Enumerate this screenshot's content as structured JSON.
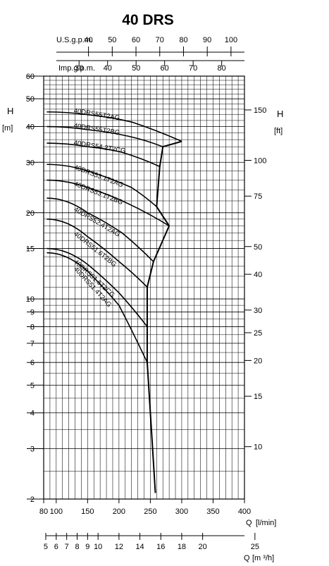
{
  "chart_data": {
    "type": "line",
    "title": "40 DRS",
    "x_axis_bottom": {
      "label_prefix": "Q",
      "unit": "[l/min]",
      "range": [
        80,
        400
      ],
      "ticks": [
        80,
        100,
        150,
        200,
        250,
        300,
        350,
        400
      ]
    },
    "x_axis_bottom2": {
      "label_prefix": "Q",
      "unit": "[m ³/h]",
      "ticks": [
        5,
        6,
        7,
        8,
        9,
        10,
        12,
        14,
        16,
        18,
        20,
        25
      ]
    },
    "x_axis_top_us": {
      "label": "U.S.g.p.m.",
      "ticks": [
        40,
        50,
        60,
        70,
        80,
        90,
        100
      ]
    },
    "x_axis_top_imp": {
      "label": "Imp.g.p.m.",
      "ticks": [
        30,
        40,
        50,
        60,
        70,
        80
      ]
    },
    "y_axis_left": {
      "label": "H",
      "unit": "[m]",
      "scale": "log",
      "range": [
        2,
        60
      ],
      "ticks": [
        2,
        3,
        4,
        5,
        6,
        7,
        8,
        9,
        10,
        15,
        20,
        30,
        40,
        50,
        60
      ]
    },
    "y_axis_right": {
      "label": "H",
      "unit": "[ft]",
      "ticks": [
        10,
        15,
        20,
        25,
        30,
        40,
        50,
        75,
        100,
        150
      ]
    },
    "grid": true,
    "series": [
      {
        "name": "40DRS55T2AG",
        "x": [
          85,
          150,
          220,
          300
        ],
        "y": [
          45,
          44,
          41.5,
          35.5
        ]
      },
      {
        "name": "40DRS55T2BG",
        "x": [
          85,
          150,
          215,
          270
        ],
        "y": [
          40,
          39,
          37,
          34
        ]
      },
      {
        "name": "40DRS54.2T2CG",
        "x": [
          85,
          150,
          205,
          265
        ],
        "y": [
          35,
          34,
          32.5,
          29
        ]
      },
      {
        "name": "40DRS53.1T2AG",
        "x": [
          85,
          150,
          220,
          260
        ],
        "y": [
          29.5,
          28,
          24.5,
          21
        ]
      },
      {
        "name": "40DRS53.1T2BG",
        "x": [
          85,
          150,
          215,
          280
        ],
        "y": [
          26,
          24.5,
          21.5,
          18
        ]
      },
      {
        "name": "40DRS52.4T2AG",
        "x": [
          85,
          150,
          205,
          255
        ],
        "y": [
          22.5,
          20,
          17,
          13.5
        ]
      },
      {
        "name": "40DRS51.6T2BG",
        "x": [
          85,
          150,
          200,
          245
        ],
        "y": [
          19,
          16.5,
          13.5,
          11
        ]
      },
      {
        "name": "40DRS51.6T2CG",
        "x": [
          85,
          150,
          200,
          245
        ],
        "y": [
          15,
          13.2,
          10.5,
          8
        ]
      },
      {
        "name": "40DRS51.4T2AG",
        "x": [
          85,
          150,
          200,
          245
        ],
        "y": [
          14.5,
          12.5,
          9.5,
          6
        ]
      }
    ]
  }
}
